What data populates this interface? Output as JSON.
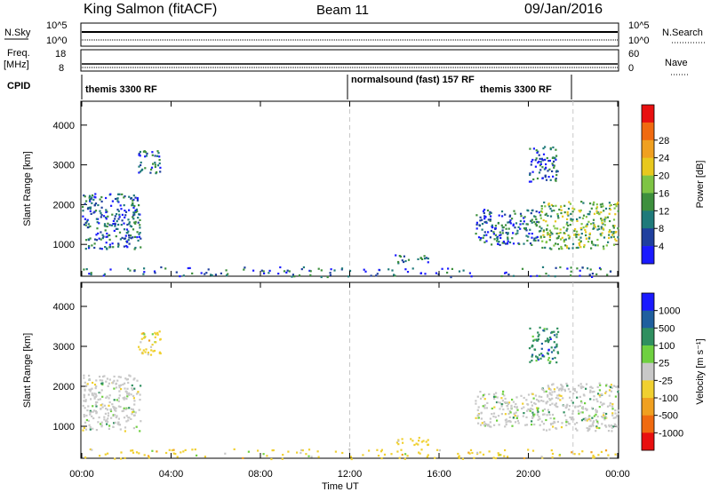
{
  "header": {
    "station": "King Salmon (fitACF)",
    "beam": "Beam 11",
    "date": "09/Jan/2016"
  },
  "top_strip": {
    "left_label": "N.Sky",
    "left_ticks": [
      "10^5",
      "10^0"
    ],
    "right_label": "N.Search",
    "right_ticks": [
      "10^5",
      "10^0"
    ]
  },
  "freq_strip": {
    "left_label": "Freq.",
    "unit": "[MHz]",
    "left_ticks": [
      "18",
      "8"
    ],
    "right_label": "Nave",
    "right_ticks": [
      "60",
      "0"
    ]
  },
  "cpid": {
    "label": "CPID",
    "programs": [
      {
        "name": "themis 3300 RF",
        "start_hr": 0,
        "end_hr": 12
      },
      {
        "name": "normalsound (fast) 157 RF",
        "start_hr": 12,
        "end_hr": 22
      },
      {
        "name": "themis 3300 RF",
        "start_hr": 18.6,
        "end_hr": 22
      }
    ]
  },
  "x_axis": {
    "label": "Time UT",
    "ticks": [
      "00:00",
      "04:00",
      "08:00",
      "12:00",
      "16:00",
      "20:00",
      "00:00"
    ],
    "range_hr": [
      0,
      24
    ]
  },
  "chart_data": [
    {
      "type": "heatmap",
      "title": "",
      "ylabel": "Slant Range [km]",
      "ylim": [
        200,
        4600
      ],
      "y_ticks": [
        1000,
        2000,
        3000,
        4000
      ],
      "colorbar": {
        "label": "Power [dB]",
        "ticks": [
          "4",
          "8",
          "12",
          "16",
          "20",
          "24",
          "28"
        ],
        "colors": [
          "#1a1aff",
          "#1f3f9e",
          "#1f7a7a",
          "#3d8f3d",
          "#7ec444",
          "#e8c81e",
          "#f0a020",
          "#f06a10",
          "#e81010"
        ]
      },
      "regions": [
        {
          "t_start": 0.0,
          "t_end": 2.6,
          "r_low": 900,
          "r_high": 2300,
          "value": 10
        },
        {
          "t_start": 2.5,
          "t_end": 3.5,
          "r_low": 2800,
          "r_high": 3400,
          "value": 8
        },
        {
          "t_start": 17.6,
          "t_end": 20.5,
          "r_low": 1000,
          "r_high": 1900,
          "value": 10
        },
        {
          "t_start": 20.0,
          "t_end": 21.3,
          "r_low": 2600,
          "r_high": 3500,
          "value": 8
        },
        {
          "t_start": 20.5,
          "t_end": 24.0,
          "r_low": 900,
          "r_high": 2100,
          "value": 14
        },
        {
          "t_start": 14.0,
          "t_end": 15.5,
          "r_low": 550,
          "r_high": 750,
          "value": 6
        },
        {
          "t_start": 0.0,
          "t_end": 24.0,
          "r_low": 200,
          "r_high": 450,
          "value": 6
        }
      ]
    },
    {
      "type": "heatmap",
      "title": "",
      "ylabel": "Slant Range [km]",
      "ylim": [
        200,
        4600
      ],
      "y_ticks": [
        1000,
        2000,
        3000,
        4000
      ],
      "colorbar": {
        "label": "Velocity [m s⁻¹]",
        "ticks": [
          "1000",
          "500",
          "100",
          "25",
          "-25",
          "-100",
          "-500",
          "-1000"
        ],
        "colors": [
          "#1a1aff",
          "#1f5f9e",
          "#2f8f5f",
          "#6fd040",
          "#c8c8c8",
          "#f0d030",
          "#f0a020",
          "#f06a10",
          "#e81010"
        ]
      },
      "regions": [
        {
          "t_start": 0.0,
          "t_end": 2.6,
          "r_low": 900,
          "r_high": 2300,
          "value": 0
        },
        {
          "t_start": 2.5,
          "t_end": 3.5,
          "r_low": 2800,
          "r_high": 3400,
          "value": -300
        },
        {
          "t_start": 17.6,
          "t_end": 20.5,
          "r_low": 1000,
          "r_high": 1900,
          "value": 0
        },
        {
          "t_start": 20.0,
          "t_end": 21.3,
          "r_low": 2600,
          "r_high": 3500,
          "value": 150
        },
        {
          "t_start": 20.5,
          "t_end": 24.0,
          "r_low": 900,
          "r_high": 2100,
          "value": 0
        },
        {
          "t_start": 14.0,
          "t_end": 15.5,
          "r_low": 550,
          "r_high": 750,
          "value": -80
        },
        {
          "t_start": 0.0,
          "t_end": 24.0,
          "r_low": 200,
          "r_high": 450,
          "value": -60
        }
      ]
    }
  ]
}
